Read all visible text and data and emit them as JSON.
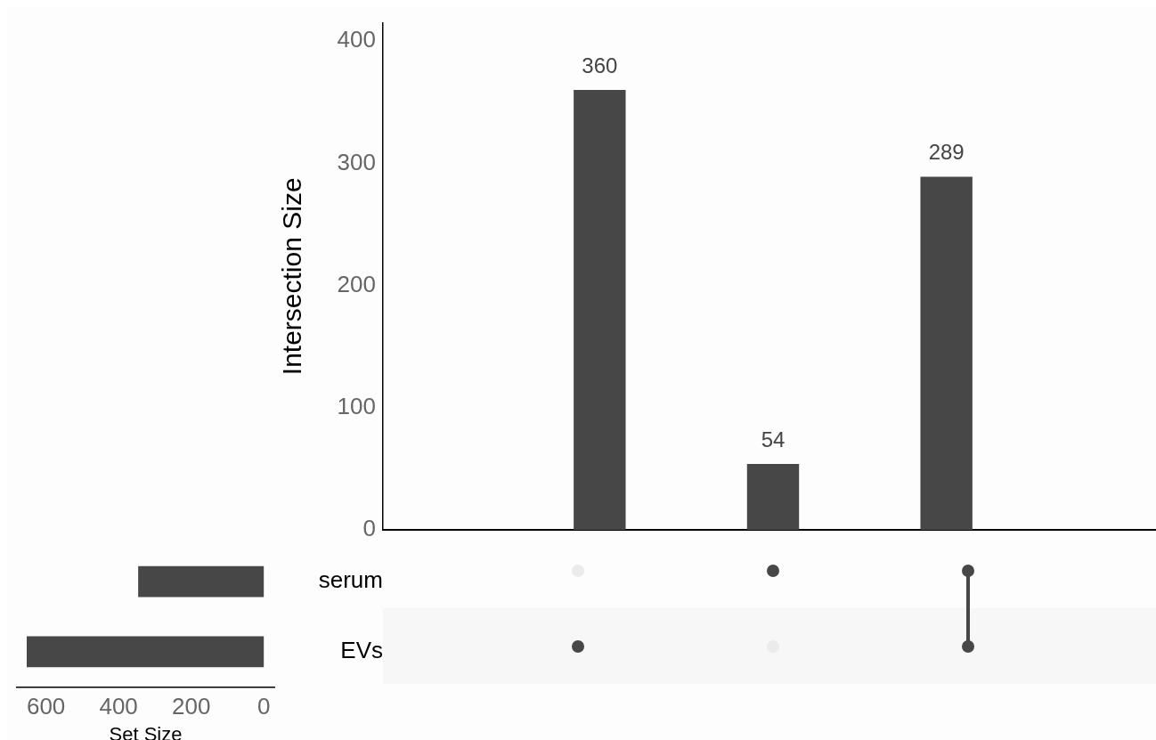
{
  "chart_data": [
    {
      "type": "bar",
      "categories": [
        null,
        null,
        null
      ],
      "values": [
        360,
        54,
        289
      ],
      "color": "#474747",
      "ylabel": "Intersection Size",
      "ylim": [
        0,
        415
      ],
      "yticks": [
        0,
        100,
        200,
        300,
        400
      ],
      "data_labels": true,
      "tick_labels": "y"
    },
    {
      "type": "bar",
      "orientation": "horizontal",
      "categories": [
        "serum",
        "EVs"
      ],
      "values": [
        346,
        653
      ],
      "color": "#474747",
      "xlabel": "Set Size",
      "xlim": [
        680,
        -29
      ],
      "xticks": [
        600,
        400,
        200,
        0
      ]
    }
  ]
}
